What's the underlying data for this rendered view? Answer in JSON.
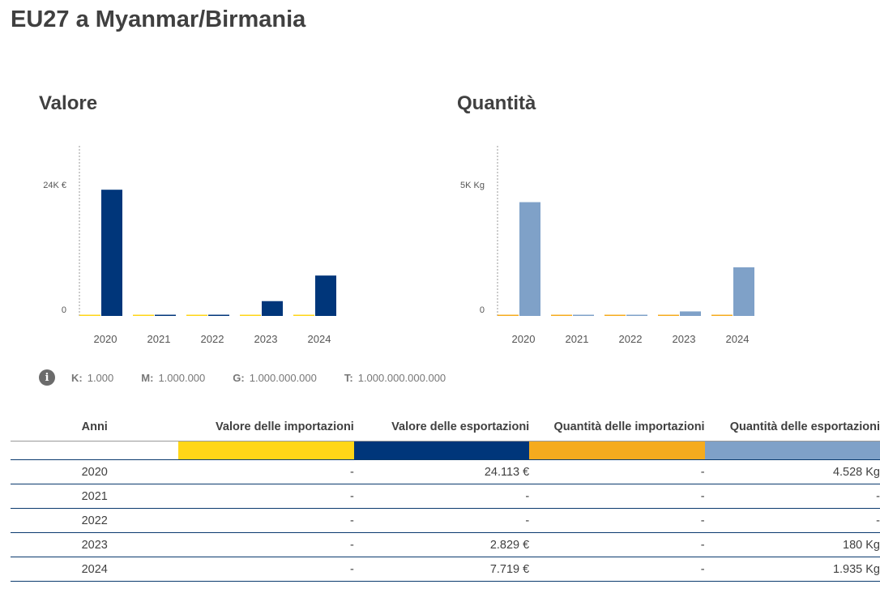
{
  "title": "EU27 a Myanmar/Birmania",
  "colors": {
    "imp_val": "#ffd617",
    "exp_val": "#00367a",
    "imp_qty": "#f5ab1e",
    "exp_qty": "#7fa1c8"
  },
  "chart_data": [
    {
      "type": "bar",
      "title": "Valore",
      "categories": [
        "2020",
        "2021",
        "2022",
        "2023",
        "2024"
      ],
      "series": [
        {
          "name": "Valore delle importazioni",
          "values": [
            0,
            0,
            0,
            0,
            0
          ]
        },
        {
          "name": "Valore delle esportazioni",
          "values": [
            24113,
            0,
            0,
            2829,
            7719
          ]
        }
      ],
      "yticks": [
        "0",
        "24K €"
      ],
      "ytick_values": [
        0,
        24000
      ],
      "ylim": [
        0,
        32500
      ]
    },
    {
      "type": "bar",
      "title": "Quantità",
      "categories": [
        "2020",
        "2021",
        "2022",
        "2023",
        "2024"
      ],
      "series": [
        {
          "name": "Quantità delle importazioni",
          "values": [
            0,
            0,
            0,
            0,
            0
          ]
        },
        {
          "name": "Quantità delle esportazioni",
          "values": [
            4528,
            0,
            0,
            180,
            1935
          ]
        }
      ],
      "yticks": [
        "0",
        "5K Kg"
      ],
      "ytick_values": [
        0,
        5000
      ],
      "ylim": [
        0,
        6770
      ]
    }
  ],
  "units": [
    {
      "k": "K:",
      "v": "1.000"
    },
    {
      "k": "M:",
      "v": "1.000.000"
    },
    {
      "k": "G:",
      "v": "1.000.000.000"
    },
    {
      "k": "T:",
      "v": "1.000.000.000.000"
    }
  ],
  "table": {
    "headers": [
      "Anni",
      "Valore delle importazioni",
      "Valore delle esportazioni",
      "Quantità delle importazioni",
      "Quantità delle esportazioni"
    ],
    "rows": [
      [
        "2020",
        "-",
        "24.113 €",
        "-",
        "4.528 Kg"
      ],
      [
        "2021",
        "-",
        "-",
        "-",
        "-"
      ],
      [
        "2022",
        "-",
        "-",
        "-",
        "-"
      ],
      [
        "2023",
        "-",
        "2.829 €",
        "-",
        "180 Kg"
      ],
      [
        "2024",
        "-",
        "7.719 €",
        "-",
        "1.935 Kg"
      ]
    ]
  }
}
